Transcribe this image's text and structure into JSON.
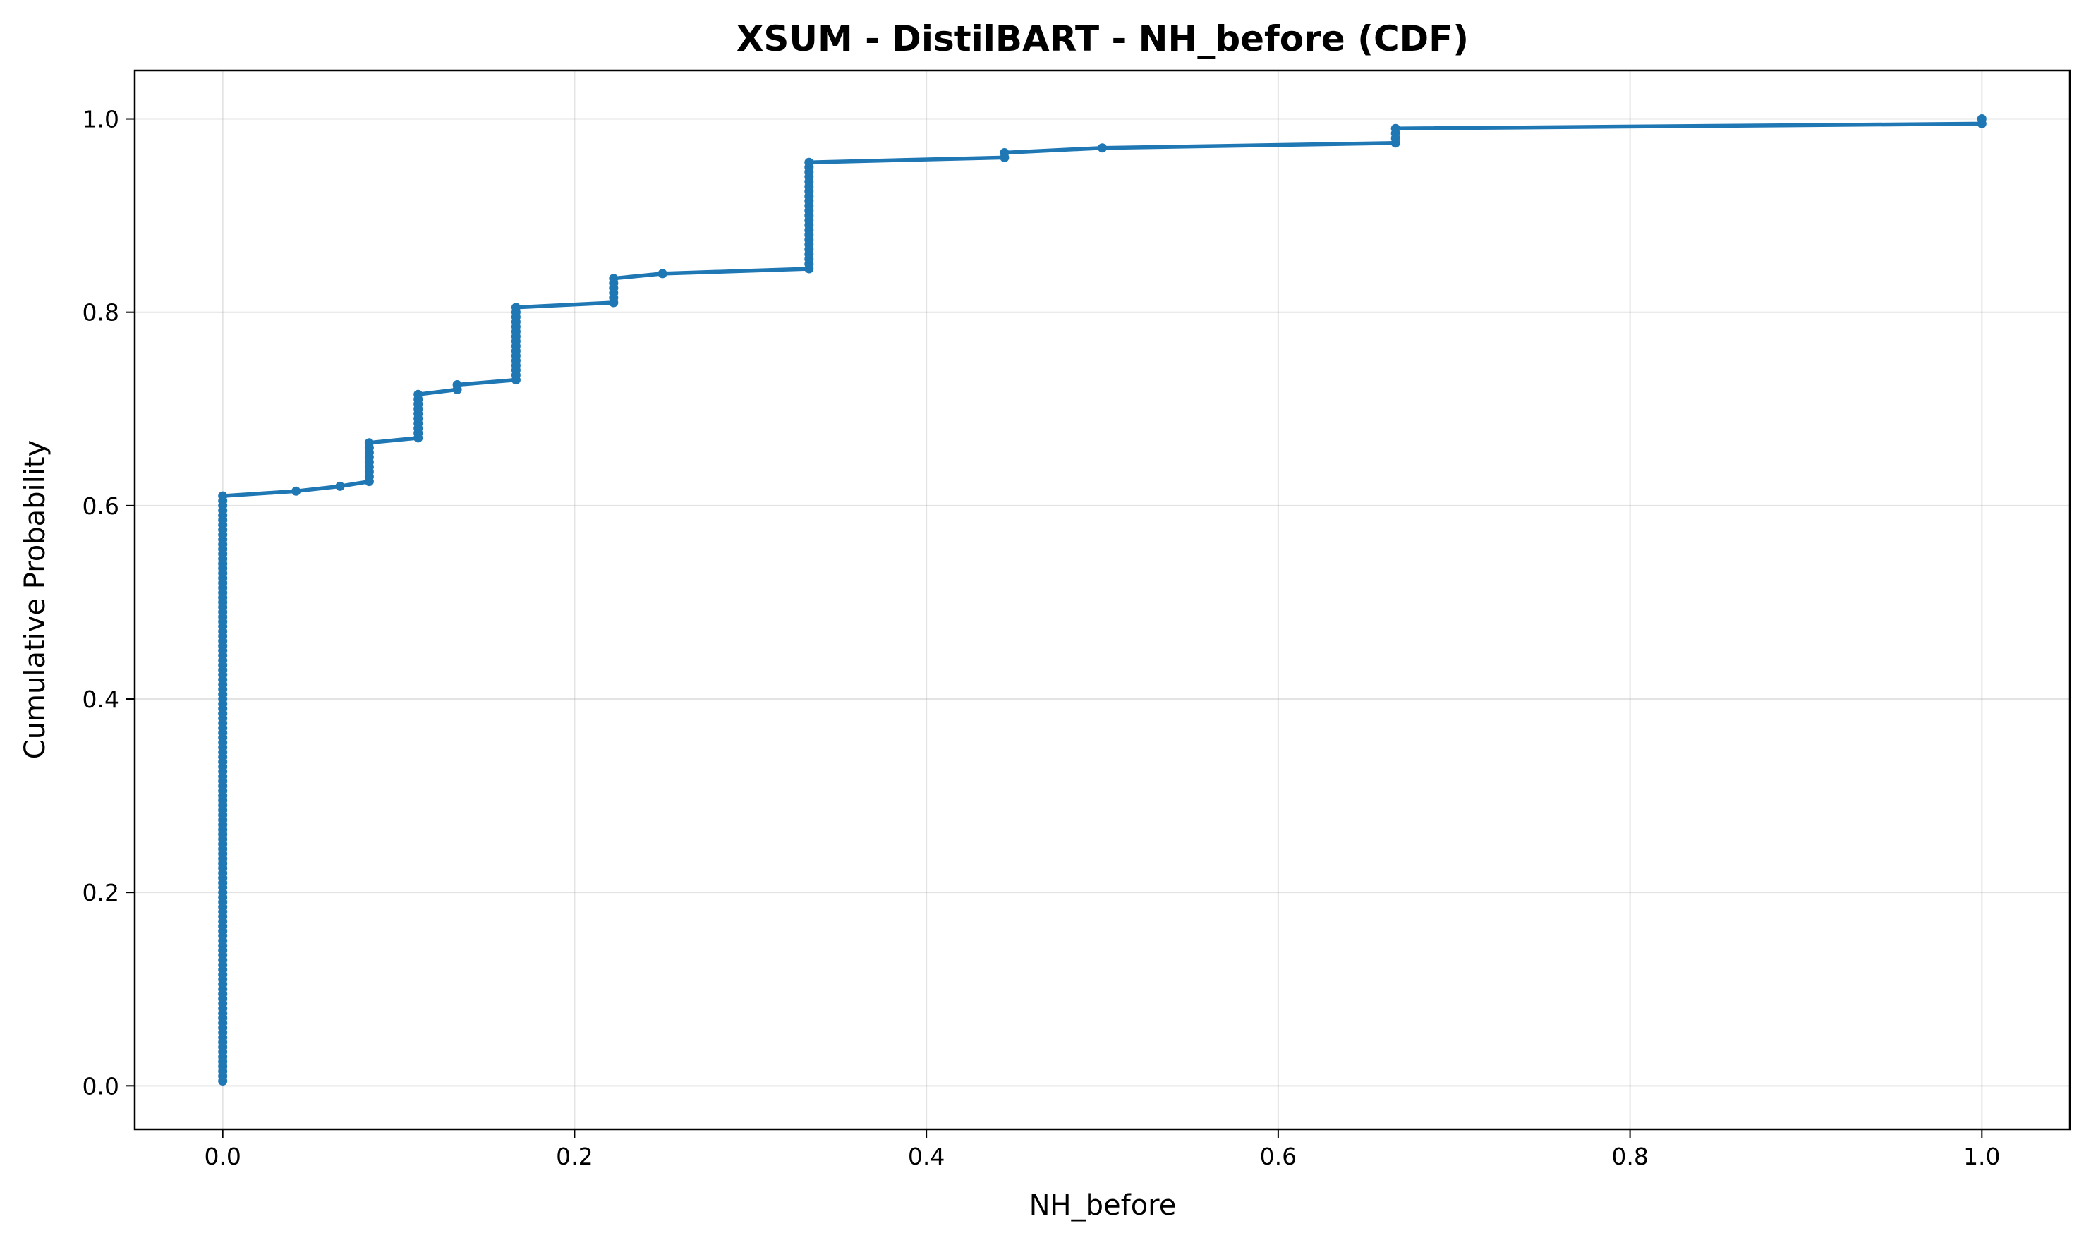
{
  "chart_data": {
    "type": "line",
    "title": "XSUM - DistilBART - NH_before (CDF)",
    "xlabel": "NH_before",
    "ylabel": "Cumulative Probability",
    "xlim": [
      -0.05,
      1.05
    ],
    "ylim": [
      -0.045,
      1.05
    ],
    "xticks": [
      0.0,
      0.2,
      0.4,
      0.6,
      0.8,
      1.0
    ],
    "xtick_labels": [
      "0.0",
      "0.2",
      "0.4",
      "0.6",
      "0.8",
      "1.0"
    ],
    "yticks": [
      0.0,
      0.2,
      0.4,
      0.6,
      0.8,
      1.0
    ],
    "ytick_labels": [
      "0.0",
      "0.2",
      "0.4",
      "0.6",
      "0.8",
      "1.0"
    ],
    "grid": true,
    "color": "#1f77b4",
    "series": [
      {
        "x_groups": [
          {
            "x": 0.0,
            "y_from": 0.005,
            "y_to": 0.61
          },
          {
            "x": 0.0417,
            "y_from": 0.615,
            "y_to": 0.615
          },
          {
            "x": 0.0667,
            "y_from": 0.62,
            "y_to": 0.62
          },
          {
            "x": 0.0833,
            "y_from": 0.625,
            "y_to": 0.665
          },
          {
            "x": 0.1111,
            "y_from": 0.67,
            "y_to": 0.715
          },
          {
            "x": 0.1333,
            "y_from": 0.72,
            "y_to": 0.725
          },
          {
            "x": 0.1667,
            "y_from": 0.73,
            "y_to": 0.805
          },
          {
            "x": 0.2222,
            "y_from": 0.81,
            "y_to": 0.835
          },
          {
            "x": 0.25,
            "y_from": 0.84,
            "y_to": 0.84
          },
          {
            "x": 0.3333,
            "y_from": 0.845,
            "y_to": 0.955
          },
          {
            "x": 0.4444,
            "y_from": 0.96,
            "y_to": 0.965
          },
          {
            "x": 0.5,
            "y_from": 0.97,
            "y_to": 0.97
          },
          {
            "x": 0.6667,
            "y_from": 0.975,
            "y_to": 0.99
          },
          {
            "x": 1.0,
            "y_from": 0.995,
            "y_to": 1.0
          }
        ],
        "step": 0.005
      }
    ]
  }
}
